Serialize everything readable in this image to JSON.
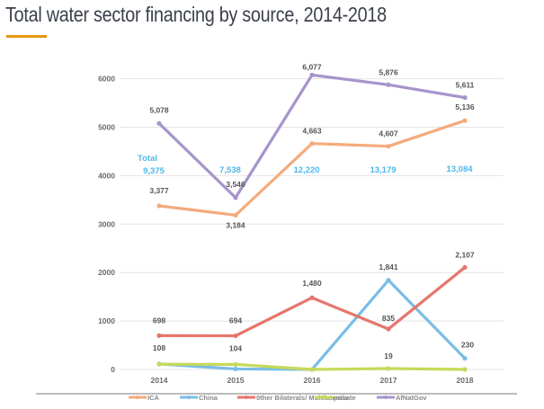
{
  "page": {
    "title": "Total water sector financing by source, 2014-2018",
    "accent_color": "#e8960f"
  },
  "chart_data": {
    "type": "line",
    "title": "Total water sector financing by source, 2014-2018",
    "xlabel": "",
    "ylabel": "",
    "ylim": [
      0,
      6000
    ],
    "yticks": [
      0,
      1000,
      2000,
      3000,
      4000,
      5000,
      6000
    ],
    "ytick_labels": [
      "0",
      "1000",
      "2000",
      "3000",
      "4000",
      "5000",
      "6000"
    ],
    "grid": true,
    "legend_position": "bottom",
    "categories": [
      "2014",
      "2015",
      "2016",
      "2017",
      "2018"
    ],
    "series": [
      {
        "name": "ICA",
        "color": "#f4ab7c",
        "values": [
          3377,
          3184,
          4663,
          4607,
          5136
        ],
        "labels": [
          "3,377",
          "3,184",
          "4,663",
          "4,607",
          "5,136"
        ]
      },
      {
        "name": "China",
        "color": "#79bde6",
        "values": [
          114,
          10,
          0,
          1841,
          230
        ],
        "labels": [
          "",
          "",
          "",
          "1,841",
          "230"
        ]
      },
      {
        "name": "Other Bilaterals/ Multilaterals",
        "color": "#e5766c",
        "values": [
          698,
          694,
          1480,
          835,
          2107
        ],
        "labels": [
          "698",
          "694",
          "1,480",
          "835",
          "2,107"
        ]
      },
      {
        "name": "private",
        "color": "#c6d95a",
        "values": [
          108,
          104,
          0,
          19,
          0
        ],
        "labels": [
          "108",
          "104",
          "",
          "19",
          ""
        ]
      },
      {
        "name": "AfNatGov",
        "color": "#a694cb",
        "values": [
          5078,
          3546,
          6077,
          5876,
          5611
        ],
        "labels": [
          "5,078",
          "3,546",
          "6,077",
          "5,876",
          "5,611"
        ]
      }
    ],
    "annotations": {
      "total_heading": "Total",
      "totals": [
        "9,375",
        "7,538",
        "12,220",
        "13,179",
        "13,084"
      ],
      "color": "#4fb8ea"
    }
  }
}
